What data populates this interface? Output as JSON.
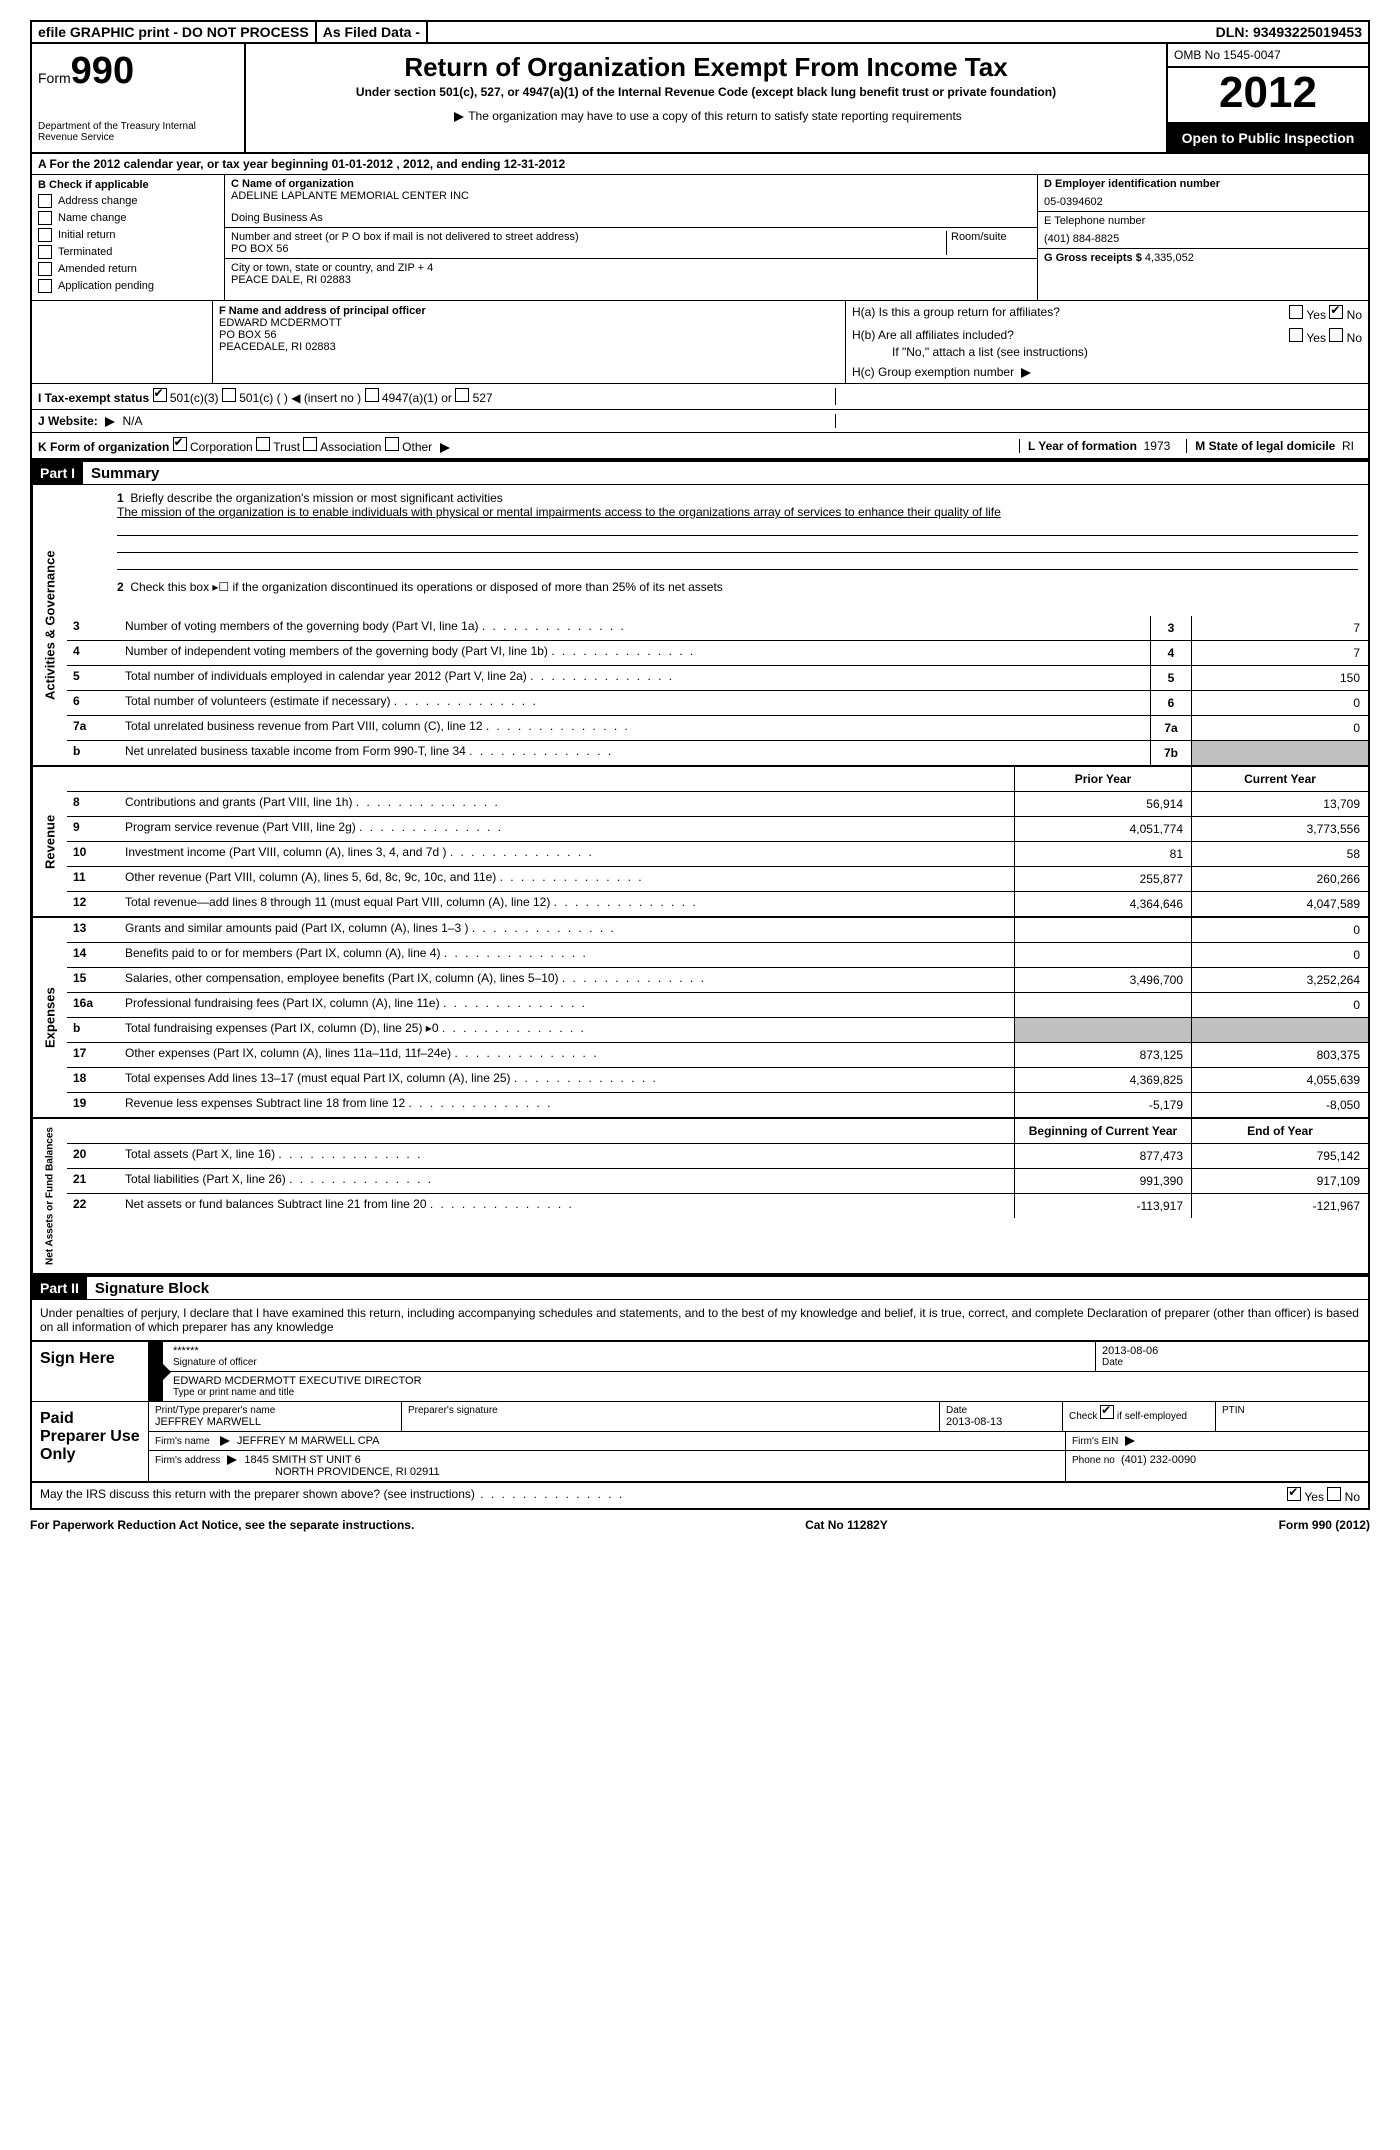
{
  "topbar": {
    "efile": "efile GRAPHIC print - DO NOT PROCESS",
    "asfiled": "As Filed Data -",
    "dln_label": "DLN:",
    "dln": "93493225019453"
  },
  "header": {
    "form_label": "Form",
    "form_num": "990",
    "dept": "Department of the Treasury\nInternal Revenue Service",
    "title": "Return of Organization Exempt From Income Tax",
    "subtitle": "Under section 501(c), 527, or 4947(a)(1) of the Internal Revenue Code (except black lung benefit trust or private foundation)",
    "note": "The organization may have to use a copy of this return to satisfy state reporting requirements",
    "omb": "OMB No 1545-0047",
    "year": "2012",
    "open": "Open to Public Inspection"
  },
  "rowA": "A  For the 2012 calendar year, or tax year beginning 01-01-2012     , 2012, and ending 12-31-2012",
  "colB": {
    "label": "B  Check if applicable",
    "items": [
      "Address change",
      "Name change",
      "Initial return",
      "Terminated",
      "Amended return",
      "Application pending"
    ]
  },
  "colC": {
    "name_label": "C Name of organization",
    "name": "ADELINE LAPLANTE MEMORIAL CENTER INC",
    "dba_label": "Doing Business As",
    "dba": "",
    "street_label": "Number and street (or P O  box if mail is not delivered to street address)",
    "room_label": "Room/suite",
    "street": "PO BOX 56",
    "city_label": "City or town, state or country, and ZIP + 4",
    "city": "PEACE DALE, RI  02883"
  },
  "colD": {
    "ein_label": "D Employer identification number",
    "ein": "05-0394602",
    "phone_label": "E Telephone number",
    "phone": "(401) 884-8825",
    "gross_label": "G Gross receipts $",
    "gross": "4,335,052"
  },
  "colF": {
    "label": "F  Name and address of principal officer",
    "name": "EDWARD MCDERMOTT",
    "street": "PO BOX 56",
    "city": "PEACEDALE, RI  02883"
  },
  "colH": {
    "ha": "H(a)  Is this a group return for affiliates?",
    "hb": "H(b)  Are all affiliates included?",
    "hb_note": "If \"No,\" attach a list  (see instructions)",
    "hc": "H(c)   Group exemption number"
  },
  "rowI": {
    "label": "I   Tax-exempt status",
    "opts": [
      "501(c)(3)",
      "501(c) (   )",
      "(insert no )",
      "4947(a)(1) or",
      "527"
    ]
  },
  "rowJ": {
    "label": "J   Website:",
    "val": "N/A"
  },
  "rowK": {
    "label": "K Form of organization",
    "opts": [
      "Corporation",
      "Trust",
      "Association",
      "Other"
    ],
    "year_label": "L Year of formation",
    "year": "1973",
    "state_label": "M State of legal domicile",
    "state": "RI"
  },
  "part1": {
    "header": "Part I",
    "title": "Summary"
  },
  "summary": {
    "q1": "Briefly describe the organization's mission or most significant activities",
    "q1_text": "The mission of the organization is to enable individuals with physical or mental impairments access to the organizations array of services to enhance their quality of life",
    "q2": "Check this box ▸☐ if the organization discontinued its operations or disposed of more than 25% of its net assets"
  },
  "gov_lines": [
    {
      "num": "3",
      "desc": "Number of voting members of the governing body (Part VI, line 1a)",
      "box": "3",
      "val": "7"
    },
    {
      "num": "4",
      "desc": "Number of independent voting members of the governing body (Part VI, line 1b)",
      "box": "4",
      "val": "7"
    },
    {
      "num": "5",
      "desc": "Total number of individuals employed in calendar year 2012 (Part V, line 2a)",
      "box": "5",
      "val": "150"
    },
    {
      "num": "6",
      "desc": "Total number of volunteers (estimate if necessary)",
      "box": "6",
      "val": "0"
    },
    {
      "num": "7a",
      "desc": "Total unrelated business revenue from Part VIII, column (C), line 12",
      "box": "7a",
      "val": "0"
    },
    {
      "num": "b",
      "desc": "Net unrelated business taxable income from Form 990-T, line 34",
      "box": "7b",
      "val": ""
    }
  ],
  "col_headers": {
    "prior": "Prior Year",
    "current": "Current Year"
  },
  "revenue_lines": [
    {
      "num": "8",
      "desc": "Contributions and grants (Part VIII, line 1h)",
      "prior": "56,914",
      "current": "13,709"
    },
    {
      "num": "9",
      "desc": "Program service revenue (Part VIII, line 2g)",
      "prior": "4,051,774",
      "current": "3,773,556"
    },
    {
      "num": "10",
      "desc": "Investment income (Part VIII, column (A), lines 3, 4, and 7d )",
      "prior": "81",
      "current": "58"
    },
    {
      "num": "11",
      "desc": "Other revenue (Part VIII, column (A), lines 5, 6d, 8c, 9c, 10c, and 11e)",
      "prior": "255,877",
      "current": "260,266"
    },
    {
      "num": "12",
      "desc": "Total revenue—add lines 8 through 11 (must equal Part VIII, column (A), line 12)",
      "prior": "4,364,646",
      "current": "4,047,589"
    }
  ],
  "expense_lines": [
    {
      "num": "13",
      "desc": "Grants and similar amounts paid (Part IX, column (A), lines 1–3 )",
      "prior": "",
      "current": "0"
    },
    {
      "num": "14",
      "desc": "Benefits paid to or for members (Part IX, column (A), line 4)",
      "prior": "",
      "current": "0"
    },
    {
      "num": "15",
      "desc": "Salaries, other compensation, employee benefits (Part IX, column (A), lines 5–10)",
      "prior": "3,496,700",
      "current": "3,252,264"
    },
    {
      "num": "16a",
      "desc": "Professional fundraising fees (Part IX, column (A), line 11e)",
      "prior": "",
      "current": "0"
    },
    {
      "num": "b",
      "desc": "Total fundraising expenses (Part IX, column (D), line 25) ▸0",
      "prior": "shade",
      "current": "shade"
    },
    {
      "num": "17",
      "desc": "Other expenses (Part IX, column (A), lines 11a–11d, 11f–24e)",
      "prior": "873,125",
      "current": "803,375"
    },
    {
      "num": "18",
      "desc": "Total expenses  Add lines 13–17 (must equal Part IX, column (A), line 25)",
      "prior": "4,369,825",
      "current": "4,055,639"
    },
    {
      "num": "19",
      "desc": "Revenue less expenses  Subtract line 18 from line 12",
      "prior": "-5,179",
      "current": "-8,050"
    }
  ],
  "net_headers": {
    "begin": "Beginning of Current Year",
    "end": "End of Year"
  },
  "net_lines": [
    {
      "num": "20",
      "desc": "Total assets (Part X, line 16)",
      "prior": "877,473",
      "current": "795,142"
    },
    {
      "num": "21",
      "desc": "Total liabilities (Part X, line 26)",
      "prior": "991,390",
      "current": "917,109"
    },
    {
      "num": "22",
      "desc": "Net assets or fund balances  Subtract line 21 from line 20",
      "prior": "-113,917",
      "current": "-121,967"
    }
  ],
  "part2": {
    "header": "Part II",
    "title": "Signature Block"
  },
  "sig": {
    "perjury": "Under penalties of perjury, I declare that I have examined this return, including accompanying schedules and statements, and to the best of my knowledge and belief, it is true, correct, and complete  Declaration of preparer (other than officer) is based on all information of which preparer has any knowledge",
    "sign_here": "Sign Here",
    "stars": "******",
    "sig_officer": "Signature of officer",
    "date1": "2013-08-06",
    "date_label": "Date",
    "officer_name": "EDWARD MCDERMOTT EXECUTIVE DIRECTOR",
    "type_label": "Type or print name and title",
    "paid": "Paid Preparer Use Only",
    "prep_name_label": "Print/Type preparer's name",
    "prep_name": "JEFFREY MARWELL",
    "prep_sig_label": "Preparer's signature",
    "date2": "2013-08-13",
    "check_self": "Check ☑ if self-employed",
    "ptin": "PTIN",
    "firm_name_label": "Firm's name",
    "firm_name": "JEFFREY M MARWELL CPA",
    "firm_ein_label": "Firm's EIN",
    "firm_addr_label": "Firm's address",
    "firm_addr1": "1845 SMITH ST UNIT 6",
    "firm_addr2": "NORTH PROVIDENCE, RI  02911",
    "phone_label": "Phone no",
    "phone": "(401) 232-0090",
    "discuss": "May the IRS discuss this return with the preparer shown above? (see instructions)",
    "yes": "Yes",
    "no": "No"
  },
  "footer": {
    "left": "For Paperwork Reduction Act Notice, see the separate instructions.",
    "mid": "Cat No  11282Y",
    "right": "Form 990 (2012)"
  },
  "labels": {
    "yes": "Yes",
    "no": "No"
  }
}
